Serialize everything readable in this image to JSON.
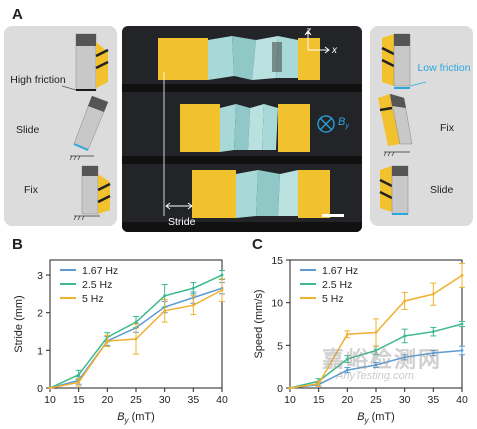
{
  "panelA": {
    "label": "A",
    "left_labels": [
      "High friction",
      "Slide",
      "Fix"
    ],
    "right_labels": [
      "Low friction",
      "Fix",
      "Slide"
    ],
    "axis_z": "z",
    "axis_x": "x",
    "field_symbol": "B",
    "field_sub": "y",
    "stride_label": "Stride"
  },
  "colors": {
    "panel_bg": "#dcdcdc",
    "photo_bg": "#222428",
    "yellow": "#f2c12e",
    "teal": "#a8d8d8",
    "low_friction": "#2aa7de",
    "series_1": "#5b9bd5",
    "series_2": "#3cb98a",
    "series_3": "#f0b030"
  },
  "chart_data": [
    {
      "panel": "B",
      "type": "line",
      "xlabel_main": "B",
      "xlabel_sub": "y",
      "xlabel_unit": " (mT)",
      "ylabel": "Stride (mm)",
      "xlim": [
        10,
        40
      ],
      "ylim": [
        0,
        3.4
      ],
      "xticks": [
        10,
        15,
        20,
        25,
        30,
        35,
        40
      ],
      "yticks": [
        0,
        1,
        2,
        3
      ],
      "series": [
        {
          "name": "1.67 Hz",
          "color": "#5b9bd5",
          "x": [
            10,
            15,
            20,
            25,
            30,
            35,
            40
          ],
          "y": [
            0,
            0.2,
            1.25,
            1.6,
            2.15,
            2.4,
            2.65
          ],
          "err": [
            0,
            0.1,
            0.12,
            0.12,
            0.15,
            0.15,
            0.15
          ]
        },
        {
          "name": "2.5 Hz",
          "color": "#3cb98a",
          "x": [
            10,
            15,
            20,
            25,
            30,
            35,
            40
          ],
          "y": [
            0,
            0.35,
            1.35,
            1.75,
            2.45,
            2.65,
            3.0
          ],
          "err": [
            0,
            0.12,
            0.12,
            0.15,
            0.3,
            0.15,
            0.12
          ]
        },
        {
          "name": "5 Hz",
          "color": "#f0b030",
          "x": [
            10,
            15,
            20,
            25,
            30,
            35,
            40
          ],
          "y": [
            0,
            0.15,
            1.25,
            1.3,
            2.05,
            2.2,
            2.6
          ],
          "err": [
            0,
            0.1,
            0.15,
            0.4,
            0.3,
            0.25,
            0.3
          ]
        }
      ]
    },
    {
      "panel": "C",
      "type": "line",
      "xlabel_main": "B",
      "xlabel_sub": "y",
      "xlabel_unit": " (mT)",
      "ylabel": "Speed (mm/s)",
      "xlim": [
        10,
        40
      ],
      "ylim": [
        0,
        15
      ],
      "xticks": [
        10,
        15,
        20,
        25,
        30,
        35,
        40
      ],
      "yticks": [
        0,
        5,
        10,
        15
      ],
      "series": [
        {
          "name": "1.67 Hz",
          "color": "#5b9bd5",
          "x": [
            10,
            15,
            20,
            25,
            30,
            35,
            40
          ],
          "y": [
            0,
            0.4,
            2.1,
            2.7,
            3.6,
            4.1,
            4.4
          ],
          "err": [
            0,
            0.2,
            0.3,
            0.3,
            0.3,
            0.3,
            0.5
          ]
        },
        {
          "name": "2.5 Hz",
          "color": "#3cb98a",
          "x": [
            10,
            15,
            20,
            25,
            30,
            35,
            40
          ],
          "y": [
            0,
            0.8,
            3.4,
            4.4,
            6.1,
            6.6,
            7.5
          ],
          "err": [
            0,
            0.3,
            0.4,
            0.5,
            0.8,
            0.5,
            0.3
          ]
        },
        {
          "name": "5 Hz",
          "color": "#f0b030",
          "x": [
            10,
            15,
            20,
            25,
            30,
            35,
            40
          ],
          "y": [
            0,
            0.5,
            6.3,
            6.5,
            10.2,
            11.0,
            13.2
          ],
          "err": [
            0,
            0.3,
            0.4,
            1.6,
            1.0,
            1.3,
            1.4
          ]
        }
      ]
    }
  ],
  "panelB_label": "B",
  "panelC_label": "C",
  "watermark": {
    "text": "嘉峪检测网",
    "url": "AnyTesting.com"
  }
}
